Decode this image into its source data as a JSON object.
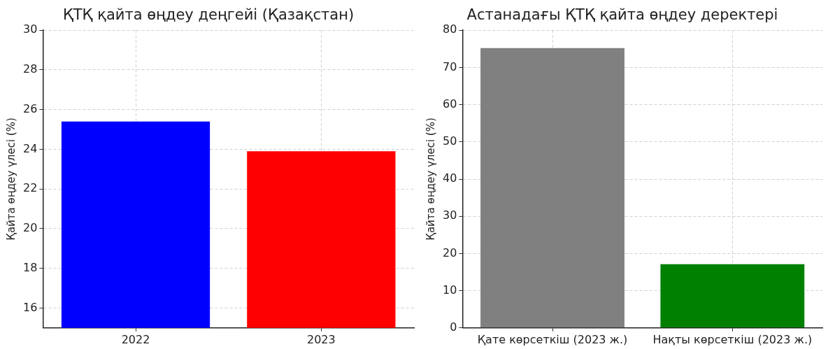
{
  "chart_data": [
    {
      "type": "bar",
      "title": "ҚТҚ қайта өңдеу деңгейі (Қазақстан)",
      "ylabel": "Қайта өңдеу үлесі (%)",
      "categories": [
        "2022",
        "2023"
      ],
      "values": [
        25.4,
        23.9
      ],
      "colors": [
        "#0000ff",
        "#ff0000"
      ],
      "ylim": [
        15,
        30
      ],
      "yticks": [
        16,
        18,
        20,
        22,
        24,
        26,
        28,
        30
      ],
      "grid": true
    },
    {
      "type": "bar",
      "title": "Астанадағы ҚТҚ қайта өңдеу деректері",
      "ylabel": "Қайта өңдеу үлесі (%)",
      "categories": [
        "Қате көрсеткіш (2023 ж.)",
        "Нақты көрсеткіш (2023 ж.)"
      ],
      "values": [
        75.2,
        17.1
      ],
      "colors": [
        "#808080",
        "#008000"
      ],
      "ylim": [
        0,
        80
      ],
      "yticks": [
        0,
        10,
        20,
        30,
        40,
        50,
        60,
        70,
        80
      ],
      "grid": true
    }
  ]
}
